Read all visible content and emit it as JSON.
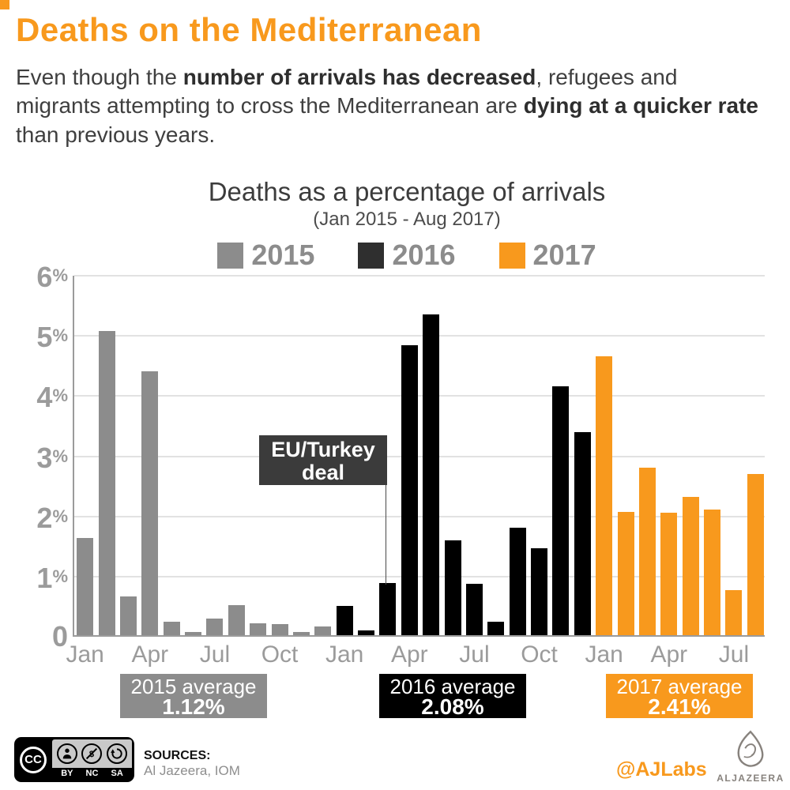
{
  "colors": {
    "orange": "#F8991D",
    "gray": "#8C8C8C",
    "black": "#000000",
    "legend_dark": "#2F2F2F",
    "annotation_bg": "#3B3B3B",
    "axis_text": "#9B9B9B"
  },
  "header": {
    "title": "Deaths on the Mediterranean",
    "intro_parts": [
      "Even though the ",
      "number of arrivals has decreased",
      ", refugees and migrants attempting to cross the Mediterranean are ",
      "dying at a quicker rate",
      " than previous years."
    ]
  },
  "chart_data": {
    "type": "bar",
    "title": "Deaths as a percentage of arrivals",
    "subtitle": "(Jan 2015 - Aug 2017)",
    "xlabel": "",
    "ylabel": "",
    "ylim": [
      0,
      6
    ],
    "yticks": [
      0,
      1,
      2,
      3,
      4,
      5,
      6
    ],
    "ytick_suffix": "%",
    "grid": true,
    "legend_position": "top",
    "x_tick_every": 3,
    "x_tick_labels": [
      "Jan",
      "Apr",
      "Jul",
      "Oct",
      "Jan",
      "Apr",
      "Jul",
      "Oct",
      "Jan",
      "Apr",
      "Jul"
    ],
    "legend": [
      {
        "label": "2015",
        "color": "#8C8C8C"
      },
      {
        "label": "2016",
        "color": "#2F2F2F"
      },
      {
        "label": "2017",
        "color": "#F8991D"
      }
    ],
    "series": [
      {
        "name": "2015",
        "color": "#8C8C8C",
        "months": [
          "Jan",
          "Feb",
          "Mar",
          "Apr",
          "May",
          "Jun",
          "Jul",
          "Aug",
          "Sep",
          "Oct",
          "Nov",
          "Dec"
        ],
        "values": [
          1.62,
          5.05,
          0.65,
          4.38,
          0.22,
          0.05,
          0.27,
          0.5,
          0.2,
          0.18,
          0.05,
          0.15
        ]
      },
      {
        "name": "2016",
        "color": "#000000",
        "months": [
          "Jan",
          "Feb",
          "Mar",
          "Apr",
          "May",
          "Jun",
          "Jul",
          "Aug",
          "Sep",
          "Oct",
          "Nov",
          "Dec"
        ],
        "values": [
          0.49,
          0.08,
          0.87,
          4.82,
          5.33,
          1.58,
          0.86,
          0.22,
          1.78,
          1.44,
          4.14,
          3.37
        ]
      },
      {
        "name": "2017",
        "color": "#F8991D",
        "months": [
          "Jan",
          "Feb",
          "Mar",
          "Apr",
          "May",
          "Jun",
          "Jul",
          "Aug"
        ],
        "values": [
          4.63,
          2.05,
          2.78,
          2.04,
          2.3,
          2.09,
          0.75,
          2.68
        ]
      }
    ],
    "annotation": {
      "line1": "EU/Turkey",
      "line2": "deal",
      "points_to": "Mar 2016"
    },
    "averages": [
      {
        "label": "2015 average",
        "value": "1.12%",
        "color": "#8C8C8C"
      },
      {
        "label": "2016 average",
        "value": "2.08%",
        "color": "#000000"
      },
      {
        "label": "2017 average",
        "value": "2.41%",
        "color": "#F8991D"
      }
    ]
  },
  "footer": {
    "license": {
      "cc_text": "CC",
      "labels": [
        "BY",
        "NC",
        "SA"
      ]
    },
    "sources_label": "SOURCES:",
    "sources_value": "Al Jazeera, IOM",
    "social": "@AJLabs",
    "brand": "ALJAZEERA"
  }
}
